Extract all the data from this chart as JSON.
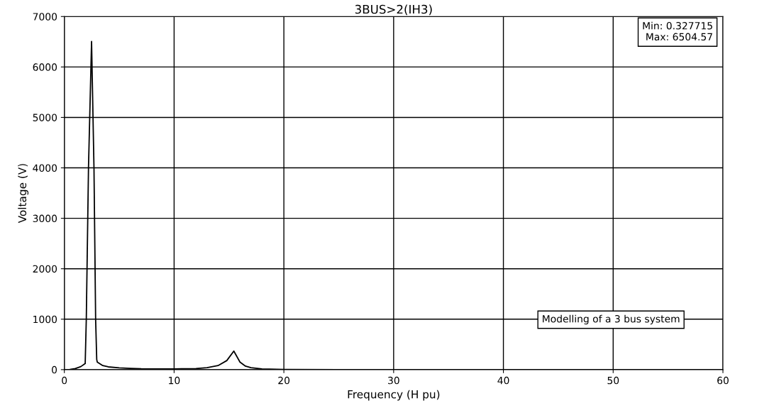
{
  "chart_data": {
    "type": "line",
    "title": "3BUS>2(IH3)",
    "xlabel": "Frequency (H pu)",
    "ylabel": "Voltage (V)",
    "x": [
      0,
      0.5,
      1.0,
      1.5,
      1.9,
      2.0,
      2.2,
      2.48,
      2.7,
      2.85,
      2.95,
      3.0,
      3.5,
      4,
      5,
      6,
      7,
      10,
      12,
      13,
      14,
      14.8,
      15.44,
      16,
      16.5,
      17,
      18,
      20,
      25,
      30,
      40,
      50,
      60
    ],
    "series": [
      {
        "color": "#000000",
        "values": [
          0,
          5,
          20,
          60,
          120,
          1000,
          4000,
          6504.57,
          4000,
          1000,
          200,
          150,
          80,
          55,
          35,
          25,
          18,
          15,
          20,
          40,
          80,
          180,
          368,
          150,
          70,
          40,
          15,
          5,
          1,
          0.5,
          0.4,
          0.35,
          0.33
        ]
      }
    ],
    "xlim": [
      0,
      60
    ],
    "ylim": [
      0,
      7000
    ],
    "xticks": [
      0,
      10,
      20,
      30,
      40,
      50,
      60
    ],
    "yticks": [
      0,
      1000,
      2000,
      3000,
      4000,
      5000,
      6000,
      7000
    ],
    "grid": true,
    "marker": "none",
    "line_style": "solid",
    "annotations": [
      "Min: 0.327715\nMax: 6504.57",
      "Modelling of a 3 bus system"
    ]
  }
}
